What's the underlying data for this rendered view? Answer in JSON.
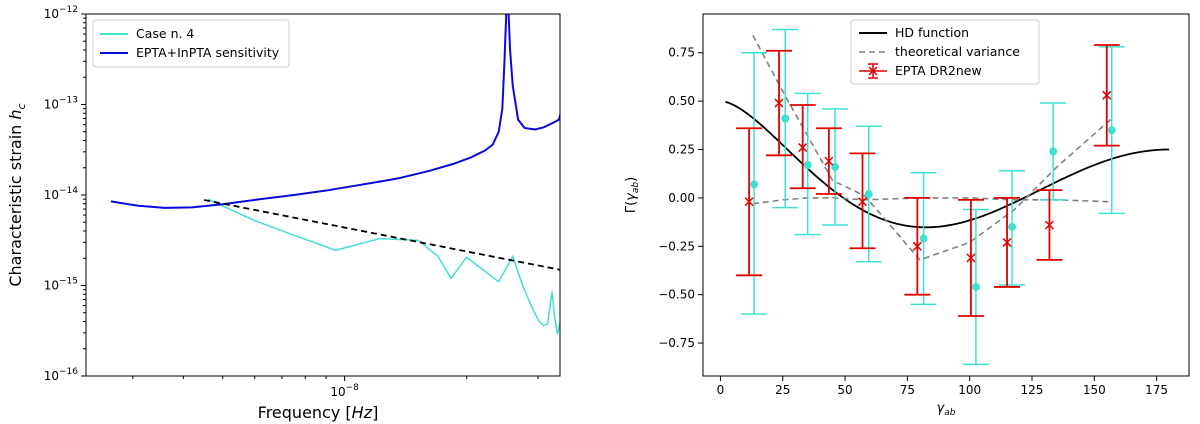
{
  "chart_data": [
    {
      "type": "line",
      "xlabel": "Frequency [Hz]",
      "ylabel": "Characteristic strain h_c",
      "x_scale": "log",
      "y_scale": "log",
      "xlim": [
        2.3e-09,
        3.4e-08
      ],
      "ylim": [
        1e-16,
        1e-12
      ],
      "x_tick_labels": [
        {
          "value": 1e-08,
          "base": "10",
          "exp": "−8"
        }
      ],
      "y_tick_labels": [
        {
          "value": 1e-16,
          "base": "10",
          "exp": "−16"
        },
        {
          "value": 1e-15,
          "base": "10",
          "exp": "−15"
        },
        {
          "value": 1e-14,
          "base": "10",
          "exp": "−14"
        },
        {
          "value": 1e-13,
          "base": "10",
          "exp": "−13"
        },
        {
          "value": 1e-12,
          "base": "10",
          "exp": "−12"
        }
      ],
      "legend": {
        "position": "top-left"
      },
      "series": [
        {
          "name": "Case n. 4",
          "color": "#40e0d0",
          "style": "solid",
          "points": [
            [
              4.6e-09,
              9e-15
            ],
            [
              6e-09,
              5.2e-15
            ],
            [
              7.5e-09,
              3.6e-15
            ],
            [
              9.5e-09,
              2.45e-15
            ],
            [
              1.22e-08,
              3.3e-15
            ],
            [
              1.52e-08,
              3.15e-15
            ],
            [
              1.7e-08,
              2.1e-15
            ],
            [
              1.83e-08,
              1.2e-15
            ],
            [
              2e-08,
              2.05e-15
            ],
            [
              2.4e-08,
              1.1e-15
            ],
            [
              2.6e-08,
              2.1e-15
            ],
            [
              2.75e-08,
              1e-15
            ],
            [
              2.9e-08,
              5.7e-16
            ],
            [
              3.02e-08,
              4e-16
            ],
            [
              3.1e-08,
              3.6e-16
            ],
            [
              3.17e-08,
              3.8e-16
            ],
            [
              3.25e-08,
              8.6e-16
            ],
            [
              3.3e-08,
              4.4e-16
            ],
            [
              3.35e-08,
              2.9e-16
            ],
            [
              3.45e-08,
              5e-16
            ],
            [
              3.5e-08,
              1.9e-16
            ],
            [
              3.55e-08,
              5.6e-16
            ]
          ]
        },
        {
          "name": "EPTA+InPTA sensitivity",
          "color": "#0a0adc",
          "style": "solid",
          "points": [
            [
              2.65e-09,
              8.5e-15
            ],
            [
              3.1e-09,
              7.6e-15
            ],
            [
              3.6e-09,
              7.2e-15
            ],
            [
              4.2e-09,
              7.3e-15
            ],
            [
              5e-09,
              7.9e-15
            ],
            [
              6.2e-09,
              9e-15
            ],
            [
              7.5e-09,
              1e-14
            ],
            [
              9e-09,
              1.12e-14
            ],
            [
              1.1e-08,
              1.3e-14
            ],
            [
              1.35e-08,
              1.52e-14
            ],
            [
              1.62e-08,
              1.85e-14
            ],
            [
              1.85e-08,
              2.2e-14
            ],
            [
              2.05e-08,
              2.6e-14
            ],
            [
              2.22e-08,
              3.1e-14
            ],
            [
              2.32e-08,
              3.6e-14
            ],
            [
              2.4e-08,
              5e-14
            ],
            [
              2.45e-08,
              9e-14
            ],
            [
              2.48e-08,
              3e-13
            ],
            [
              2.505e-08,
              1e-12
            ],
            [
              2.53e-08,
              1.5e-12
            ],
            [
              2.56e-08,
              4e-13
            ],
            [
              2.6e-08,
              1.6e-13
            ],
            [
              2.68e-08,
              6.8e-14
            ],
            [
              2.78e-08,
              5.5e-14
            ],
            [
              2.95e-08,
              5.3e-14
            ],
            [
              3.1e-08,
              5.6e-14
            ],
            [
              3.25e-08,
              6.2e-14
            ],
            [
              3.38e-08,
              6.8e-14
            ],
            [
              3.42e-08,
              8.3e-14
            ],
            [
              3.44e-08,
              1.05e-13
            ],
            [
              3.47e-08,
              7.8e-14
            ],
            [
              3.52e-08,
              8.3e-14
            ],
            [
              3.57e-08,
              8.5e-14
            ]
          ]
        },
        {
          "name": "",
          "color": "#000000",
          "style": "dashed",
          "points": [
            [
              4.5e-09,
              8.8e-15
            ],
            [
              3.6e-08,
              1.42e-15
            ]
          ]
        }
      ]
    },
    {
      "type": "line",
      "xlabel": "γab",
      "ylabel": "Γ(γab)",
      "xlim": [
        -7,
        188
      ],
      "ylim": [
        -0.92,
        0.95
      ],
      "x_ticks": [
        0,
        25,
        50,
        75,
        100,
        125,
        150,
        175
      ],
      "y_ticks": [
        -0.75,
        -0.5,
        -0.25,
        0.0,
        0.25,
        0.5,
        0.75
      ],
      "legend": {
        "position": "top-center"
      },
      "hd_function": {
        "name": "HD function",
        "color": "#000000",
        "x_range": [
          2,
          180
        ]
      },
      "theoretical_variance": {
        "name": "theoretical variance",
        "color": "#808080",
        "upper": [
          [
            13,
            -0.03
          ],
          [
            25,
            -0.01
          ],
          [
            35,
            0.0
          ],
          [
            45,
            0.0
          ],
          [
            58,
            -0.01
          ],
          [
            80,
            0.0
          ],
          [
            100,
            0.0
          ],
          [
            118,
            -0.01
          ],
          [
            135,
            -0.01
          ],
          [
            157,
            -0.02
          ]
        ],
        "lower": [
          [
            13,
            0.84
          ],
          [
            25,
            0.55
          ],
          [
            35,
            0.32
          ],
          [
            45,
            0.09
          ],
          [
            58,
            0.01
          ],
          [
            80,
            -0.32
          ],
          [
            100,
            -0.23
          ],
          [
            118,
            -0.06
          ],
          [
            135,
            0.16
          ],
          [
            157,
            0.41
          ]
        ]
      },
      "epta_dr2new": {
        "name": "EPTA DR2new",
        "color": "#e00000",
        "points": [
          {
            "x": 11.5,
            "y": -0.02,
            "lo": -0.4,
            "hi": 0.36
          },
          {
            "x": 23.5,
            "y": 0.49,
            "lo": 0.22,
            "hi": 0.76
          },
          {
            "x": 33,
            "y": 0.26,
            "lo": 0.05,
            "hi": 0.48
          },
          {
            "x": 43.5,
            "y": 0.19,
            "lo": 0.02,
            "hi": 0.36
          },
          {
            "x": 57,
            "y": -0.02,
            "lo": -0.26,
            "hi": 0.23
          },
          {
            "x": 79,
            "y": -0.25,
            "lo": -0.5,
            "hi": 0.0
          },
          {
            "x": 100.5,
            "y": -0.31,
            "lo": -0.61,
            "hi": -0.01
          },
          {
            "x": 115,
            "y": -0.23,
            "lo": -0.46,
            "hi": 0.0
          },
          {
            "x": 132,
            "y": -0.14,
            "lo": -0.32,
            "hi": 0.04
          },
          {
            "x": 155,
            "y": 0.53,
            "lo": 0.27,
            "hi": 0.79
          }
        ]
      },
      "case_points": {
        "name": "",
        "color": "#40e0d0",
        "points": [
          {
            "x": 13.5,
            "y": 0.07,
            "lo": -0.6,
            "hi": 0.75
          },
          {
            "x": 26,
            "y": 0.41,
            "lo": -0.05,
            "hi": 0.87
          },
          {
            "x": 35,
            "y": 0.17,
            "lo": -0.19,
            "hi": 0.54
          },
          {
            "x": 46,
            "y": 0.16,
            "lo": -0.14,
            "hi": 0.46
          },
          {
            "x": 59.5,
            "y": 0.02,
            "lo": -0.33,
            "hi": 0.37
          },
          {
            "x": 81.5,
            "y": -0.21,
            "lo": -0.55,
            "hi": 0.13
          },
          {
            "x": 102.5,
            "y": -0.46,
            "lo": -0.86,
            "hi": -0.06
          },
          {
            "x": 117,
            "y": -0.15,
            "lo": -0.45,
            "hi": 0.14
          },
          {
            "x": 133.5,
            "y": 0.24,
            "lo": -0.01,
            "hi": 0.49
          },
          {
            "x": 157,
            "y": 0.35,
            "lo": -0.08,
            "hi": 0.78
          }
        ]
      }
    }
  ]
}
